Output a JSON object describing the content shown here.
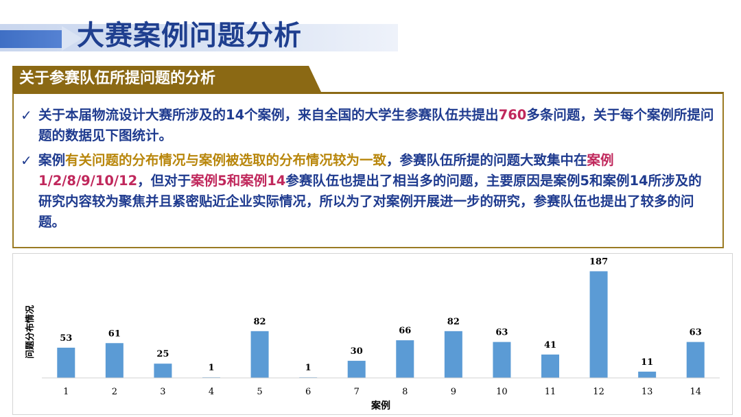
{
  "page": {
    "title": "大赛案例问题分析",
    "section_header": "关于参赛队伍所提问题的分析"
  },
  "paragraphs": {
    "p1": {
      "check": "✓",
      "before": "关于本届物流设计大赛所涉及的14个案例，来自全国的大学生参赛队伍共提出",
      "count": "760",
      "after": "多条问题，关于每个案例所提问题的数据见下图统计。"
    },
    "p2": {
      "check": "✓",
      "s1": "案例",
      "s2": "有关问题的分布情况与案例被选取的分布情况较为一致",
      "s3": "，参赛队伍所提的问题大致集中在",
      "s4": "案例1/2/8/9/10/12",
      "s5": "，但对于",
      "s6": "案例5和案例14",
      "s7": "参赛队伍也提出了相当多的问题，主要原因是案例5和案例14所涉及的研究内容较为聚焦并且紧密贴近企业实际情况，所以为了对案例开展进一步的研究，参赛队伍也提出了较多的问题。"
    }
  },
  "colors": {
    "bar": "#5b9bd5",
    "title": "#1f3f8f",
    "header_bg": "#8b6914",
    "highlight_red": "#c0285c",
    "highlight_gold": "#b8860b"
  },
  "chart_data": {
    "type": "bar",
    "categories": [
      "1",
      "2",
      "3",
      "4",
      "5",
      "6",
      "7",
      "8",
      "9",
      "10",
      "11",
      "12",
      "13",
      "14"
    ],
    "values": [
      53,
      61,
      25,
      1,
      82,
      1,
      30,
      66,
      82,
      63,
      41,
      187,
      11,
      63
    ],
    "title": "",
    "xlabel": "案例",
    "ylabel": "问题分布情况",
    "ylim": [
      0,
      190
    ],
    "grid": false,
    "legend": "none",
    "data_labels": true
  }
}
